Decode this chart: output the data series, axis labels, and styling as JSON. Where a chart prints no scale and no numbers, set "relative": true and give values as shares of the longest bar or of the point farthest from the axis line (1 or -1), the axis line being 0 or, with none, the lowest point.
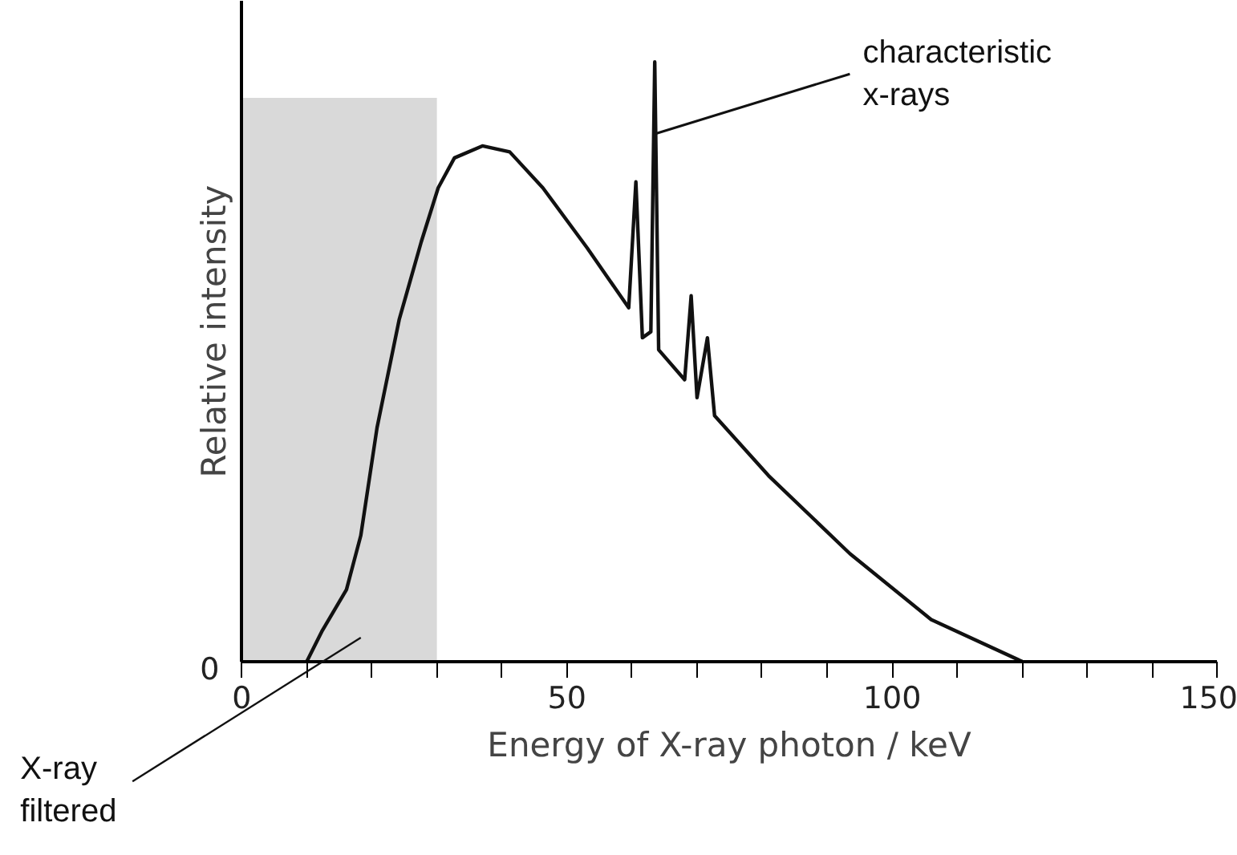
{
  "chart_data": {
    "type": "line",
    "relative": true,
    "xlabel": "Energy of X-ray photon / keV",
    "ylabel": "Relative intensity",
    "xlim": [
      0,
      150
    ],
    "xticks": [
      0,
      {
        "value": 10,
        "label": null
      },
      {
        "value": 20,
        "label": null
      },
      {
        "value": 30,
        "label": null
      },
      {
        "value": 40,
        "label": null
      },
      50,
      {
        "value": 60,
        "label": null
      },
      {
        "value": 70,
        "label": null
      },
      {
        "value": 80,
        "label": null
      },
      {
        "value": 90,
        "label": null
      },
      100,
      {
        "value": 110,
        "label": null
      },
      {
        "value": 120,
        "label": null
      },
      {
        "value": 130,
        "label": null
      },
      {
        "value": 140,
        "label": null
      },
      150
    ],
    "grid": false,
    "marker": "none",
    "line_style": "solid",
    "series": [
      {
        "color": "#111111",
        "x": [
          10,
          12.3,
          16.1,
          18.3,
          20.8,
          24.2,
          27.6,
          30.2,
          32.7,
          37.0,
          41.2,
          46.3,
          53.1,
          59.5,
          60.6,
          61.6,
          62.9,
          63.5,
          64.1,
          68.1,
          69.1,
          70.0,
          71.6,
          72.7,
          81.0,
          93.5,
          106.0,
          120
        ],
        "values": [
          0,
          0.05,
          0.12,
          0.21,
          0.39,
          0.57,
          0.7,
          0.79,
          0.84,
          0.86,
          0.85,
          0.79,
          0.69,
          0.59,
          0.8,
          0.54,
          0.55,
          1.0,
          0.52,
          0.47,
          0.61,
          0.44,
          0.54,
          0.41,
          0.31,
          0.18,
          0.07,
          0
        ]
      }
    ],
    "bands": [
      {
        "axis": "x",
        "from": 0,
        "to": 30,
        "color": "#d9d9d9"
      }
    ],
    "annotations": [
      {
        "text": "0",
        "x": 0,
        "y": 0
      },
      {
        "text": "characteristic\nx-rays",
        "x": 63.5,
        "y": 0.88
      },
      "X-ray\nfiltered"
    ]
  }
}
